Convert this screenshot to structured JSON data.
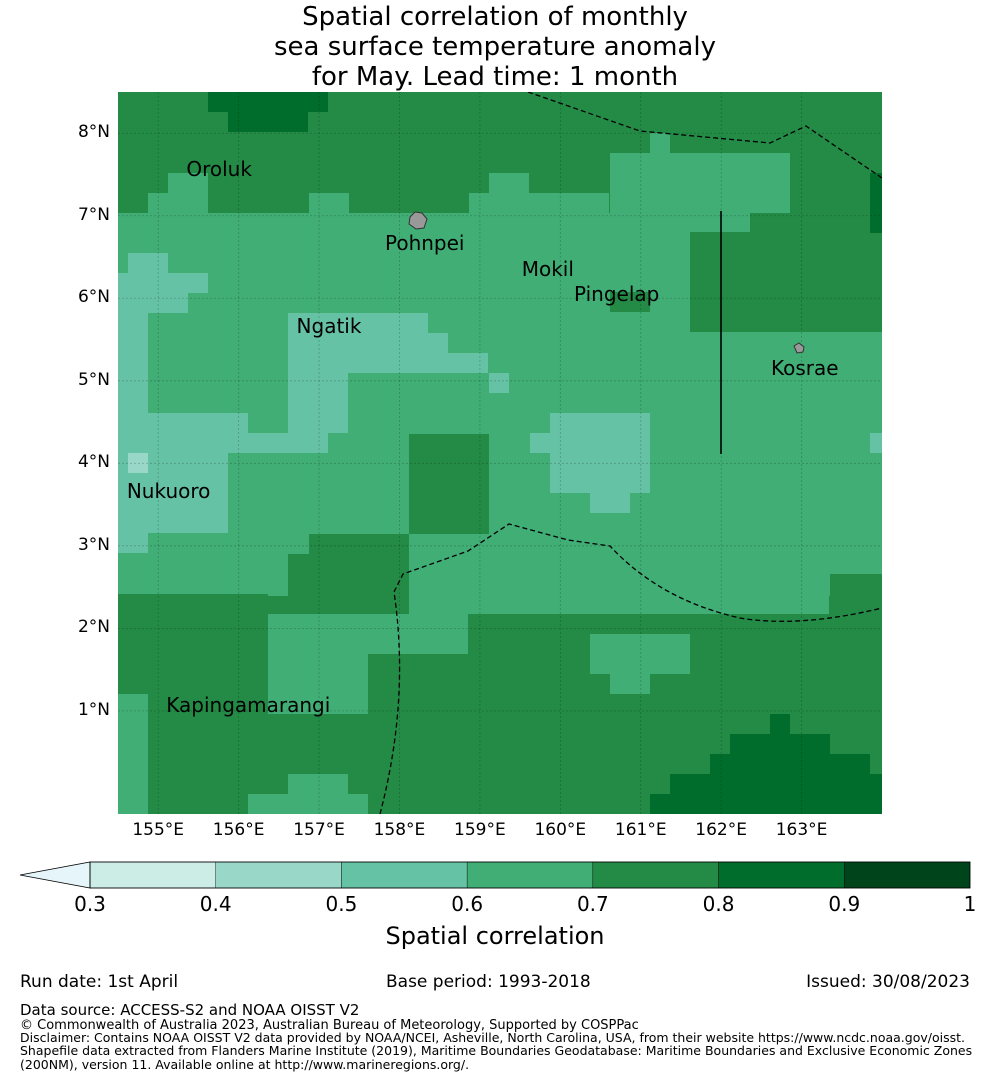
{
  "title": {
    "line1": "Spatial correlation of monthly",
    "line2": "sea surface temperature anomaly",
    "line3": "for May. Lead time: 1 month"
  },
  "map": {
    "lat_ticks": [
      "8°N",
      "7°N",
      "6°N",
      "5°N",
      "4°N",
      "3°N",
      "2°N",
      "1°N"
    ],
    "lon_ticks": [
      "155°E",
      "156°E",
      "157°E",
      "158°E",
      "159°E",
      "160°E",
      "161°E",
      "162°E",
      "163°E"
    ],
    "places": [
      {
        "name": "Oroluk",
        "lon": 155.35,
        "lat": 7.57
      },
      {
        "name": "Pohnpei",
        "lon": 157.82,
        "lat": 6.67
      },
      {
        "name": "Mokil",
        "lon": 159.52,
        "lat": 6.36
      },
      {
        "name": "Pingelap",
        "lon": 160.17,
        "lat": 6.05
      },
      {
        "name": "Ngatik",
        "lon": 156.72,
        "lat": 5.67
      },
      {
        "name": "Kosrae",
        "lon": 162.62,
        "lat": 5.15
      },
      {
        "name": "Nukuoro",
        "lon": 154.61,
        "lat": 3.67
      },
      {
        "name": "Kapingamarangi",
        "lon": 155.1,
        "lat": 1.07
      }
    ]
  },
  "colorbar": {
    "ticks": [
      "0.3",
      "0.4",
      "0.5",
      "0.6",
      "0.7",
      "0.8",
      "0.9",
      "1"
    ],
    "label": "Spatial correlation",
    "colors": [
      "#e5f5f9",
      "#ccece6",
      "#99d8c9",
      "#66c2a4",
      "#41ae76",
      "#238b45",
      "#006d2c",
      "#00441b"
    ]
  },
  "footer": {
    "run_date": "Run date: 1st April",
    "base_period": "Base period: 1993-2018",
    "issued": "Issued: 30/08/2023",
    "data_source": "Data source: ACCESS-S2 and NOAA OISST V2",
    "copyright": "© Commonwealth of Australia 2023, Australian Bureau of Meteorology, Supported by COSPPac",
    "disclaimer1": "Disclaimer: Contains NOAA OISST V2 data provided by NOAA/NCEI, Asheville, North Carolina, USA, from their website https://www.ncdc.noaa.gov/oisst.",
    "disclaimer2": "Shapefile data extracted from Flanders Marine Institute (2019), Maritime Boundaries Geodatabase: Maritime Boundaries and Exclusive Economic Zones",
    "disclaimer3": "(200NM), version 11. Available online at http://www.marineregions.org/."
  }
}
